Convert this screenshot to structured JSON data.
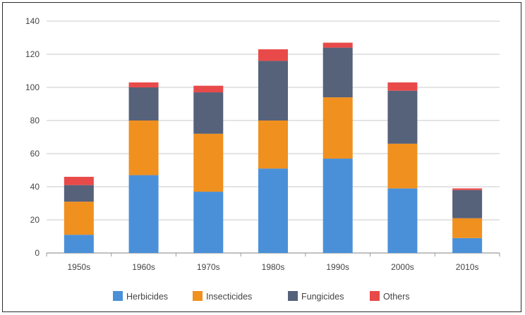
{
  "chart_data": {
    "type": "bar",
    "stacked": true,
    "title": "",
    "xlabel": "",
    "ylabel": "",
    "ylim": [
      0,
      140
    ],
    "yticks": [
      0,
      20,
      40,
      60,
      80,
      100,
      120,
      140
    ],
    "grid": true,
    "legend_position": "bottom",
    "categories": [
      "1950s",
      "1960s",
      "1970s",
      "1980s",
      "1990s",
      "2000s",
      "2010s"
    ],
    "series": [
      {
        "name": "Herbicides",
        "color": "#4a90d9",
        "values": [
          11,
          47,
          37,
          51,
          57,
          39,
          9
        ]
      },
      {
        "name": "Insecticides",
        "color": "#f0901e",
        "values": [
          20,
          33,
          35,
          29,
          37,
          27,
          12
        ]
      },
      {
        "name": "Fungicides",
        "color": "#56617a",
        "values": [
          10,
          20,
          25,
          36,
          30,
          32,
          17
        ]
      },
      {
        "name": "Others",
        "color": "#e84a4a",
        "values": [
          5,
          3,
          4,
          7,
          3,
          5,
          1
        ]
      }
    ]
  }
}
